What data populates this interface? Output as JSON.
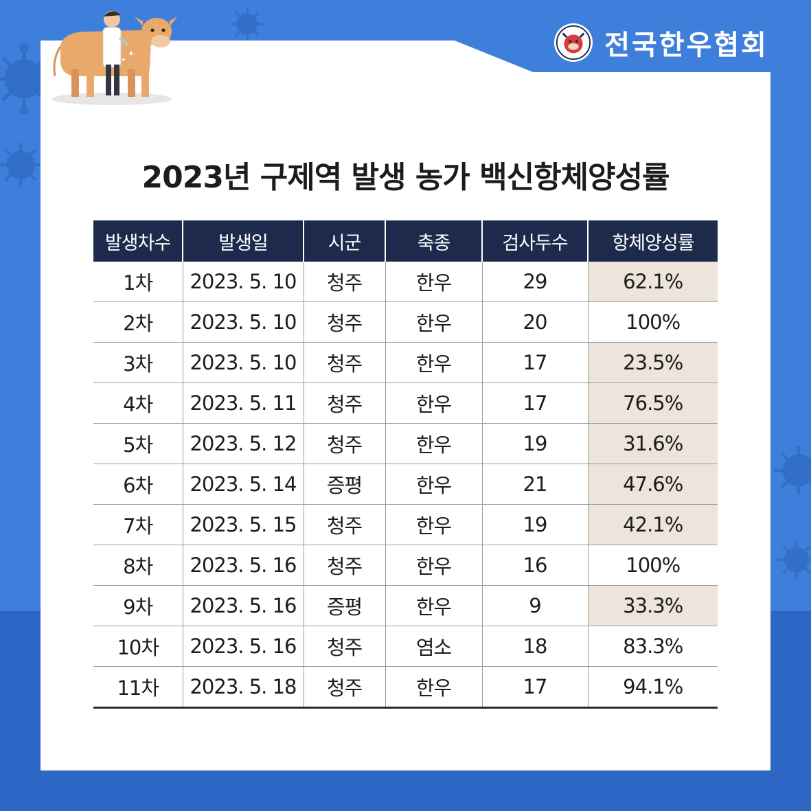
{
  "brand": {
    "name": "전국한우협회",
    "logo_icon": "hanwoo-association-seal-icon"
  },
  "illustration": {
    "icon": "veterinarian-vaccinating-cow-icon"
  },
  "colors": {
    "background": "#3f7fdc",
    "header_fill": "#1e2a4b",
    "highlight": "#ede4db"
  },
  "title": "2023년 구제역 발생 농가 백신항체양성률",
  "table": {
    "headers": [
      "발생차수",
      "발생일",
      "시군",
      "축종",
      "검사두수",
      "항체양성률"
    ],
    "rows": [
      {
        "cells": [
          "1차",
          "2023. 5. 10",
          "청주",
          "한우",
          "29",
          "62.1%"
        ],
        "highlight": true
      },
      {
        "cells": [
          "2차",
          "2023. 5. 10",
          "청주",
          "한우",
          "20",
          "100%"
        ],
        "highlight": false
      },
      {
        "cells": [
          "3차",
          "2023. 5. 10",
          "청주",
          "한우",
          "17",
          "23.5%"
        ],
        "highlight": true
      },
      {
        "cells": [
          "4차",
          "2023. 5. 11",
          "청주",
          "한우",
          "17",
          "76.5%"
        ],
        "highlight": true
      },
      {
        "cells": [
          "5차",
          "2023. 5. 12",
          "청주",
          "한우",
          "19",
          "31.6%"
        ],
        "highlight": true
      },
      {
        "cells": [
          "6차",
          "2023. 5. 14",
          "증평",
          "한우",
          "21",
          "47.6%"
        ],
        "highlight": true
      },
      {
        "cells": [
          "7차",
          "2023. 5. 15",
          "청주",
          "한우",
          "19",
          "42.1%"
        ],
        "highlight": true
      },
      {
        "cells": [
          "8차",
          "2023. 5. 16",
          "청주",
          "한우",
          "16",
          "100%"
        ],
        "highlight": false
      },
      {
        "cells": [
          "9차",
          "2023. 5. 16",
          "증평",
          "한우",
          "9",
          "33.3%"
        ],
        "highlight": true
      },
      {
        "cells": [
          "10차",
          "2023. 5. 16",
          "청주",
          "염소",
          "18",
          "83.3%"
        ],
        "highlight": false
      },
      {
        "cells": [
          "11차",
          "2023. 5. 18",
          "청주",
          "한우",
          "17",
          "94.1%"
        ],
        "highlight": false
      }
    ]
  }
}
